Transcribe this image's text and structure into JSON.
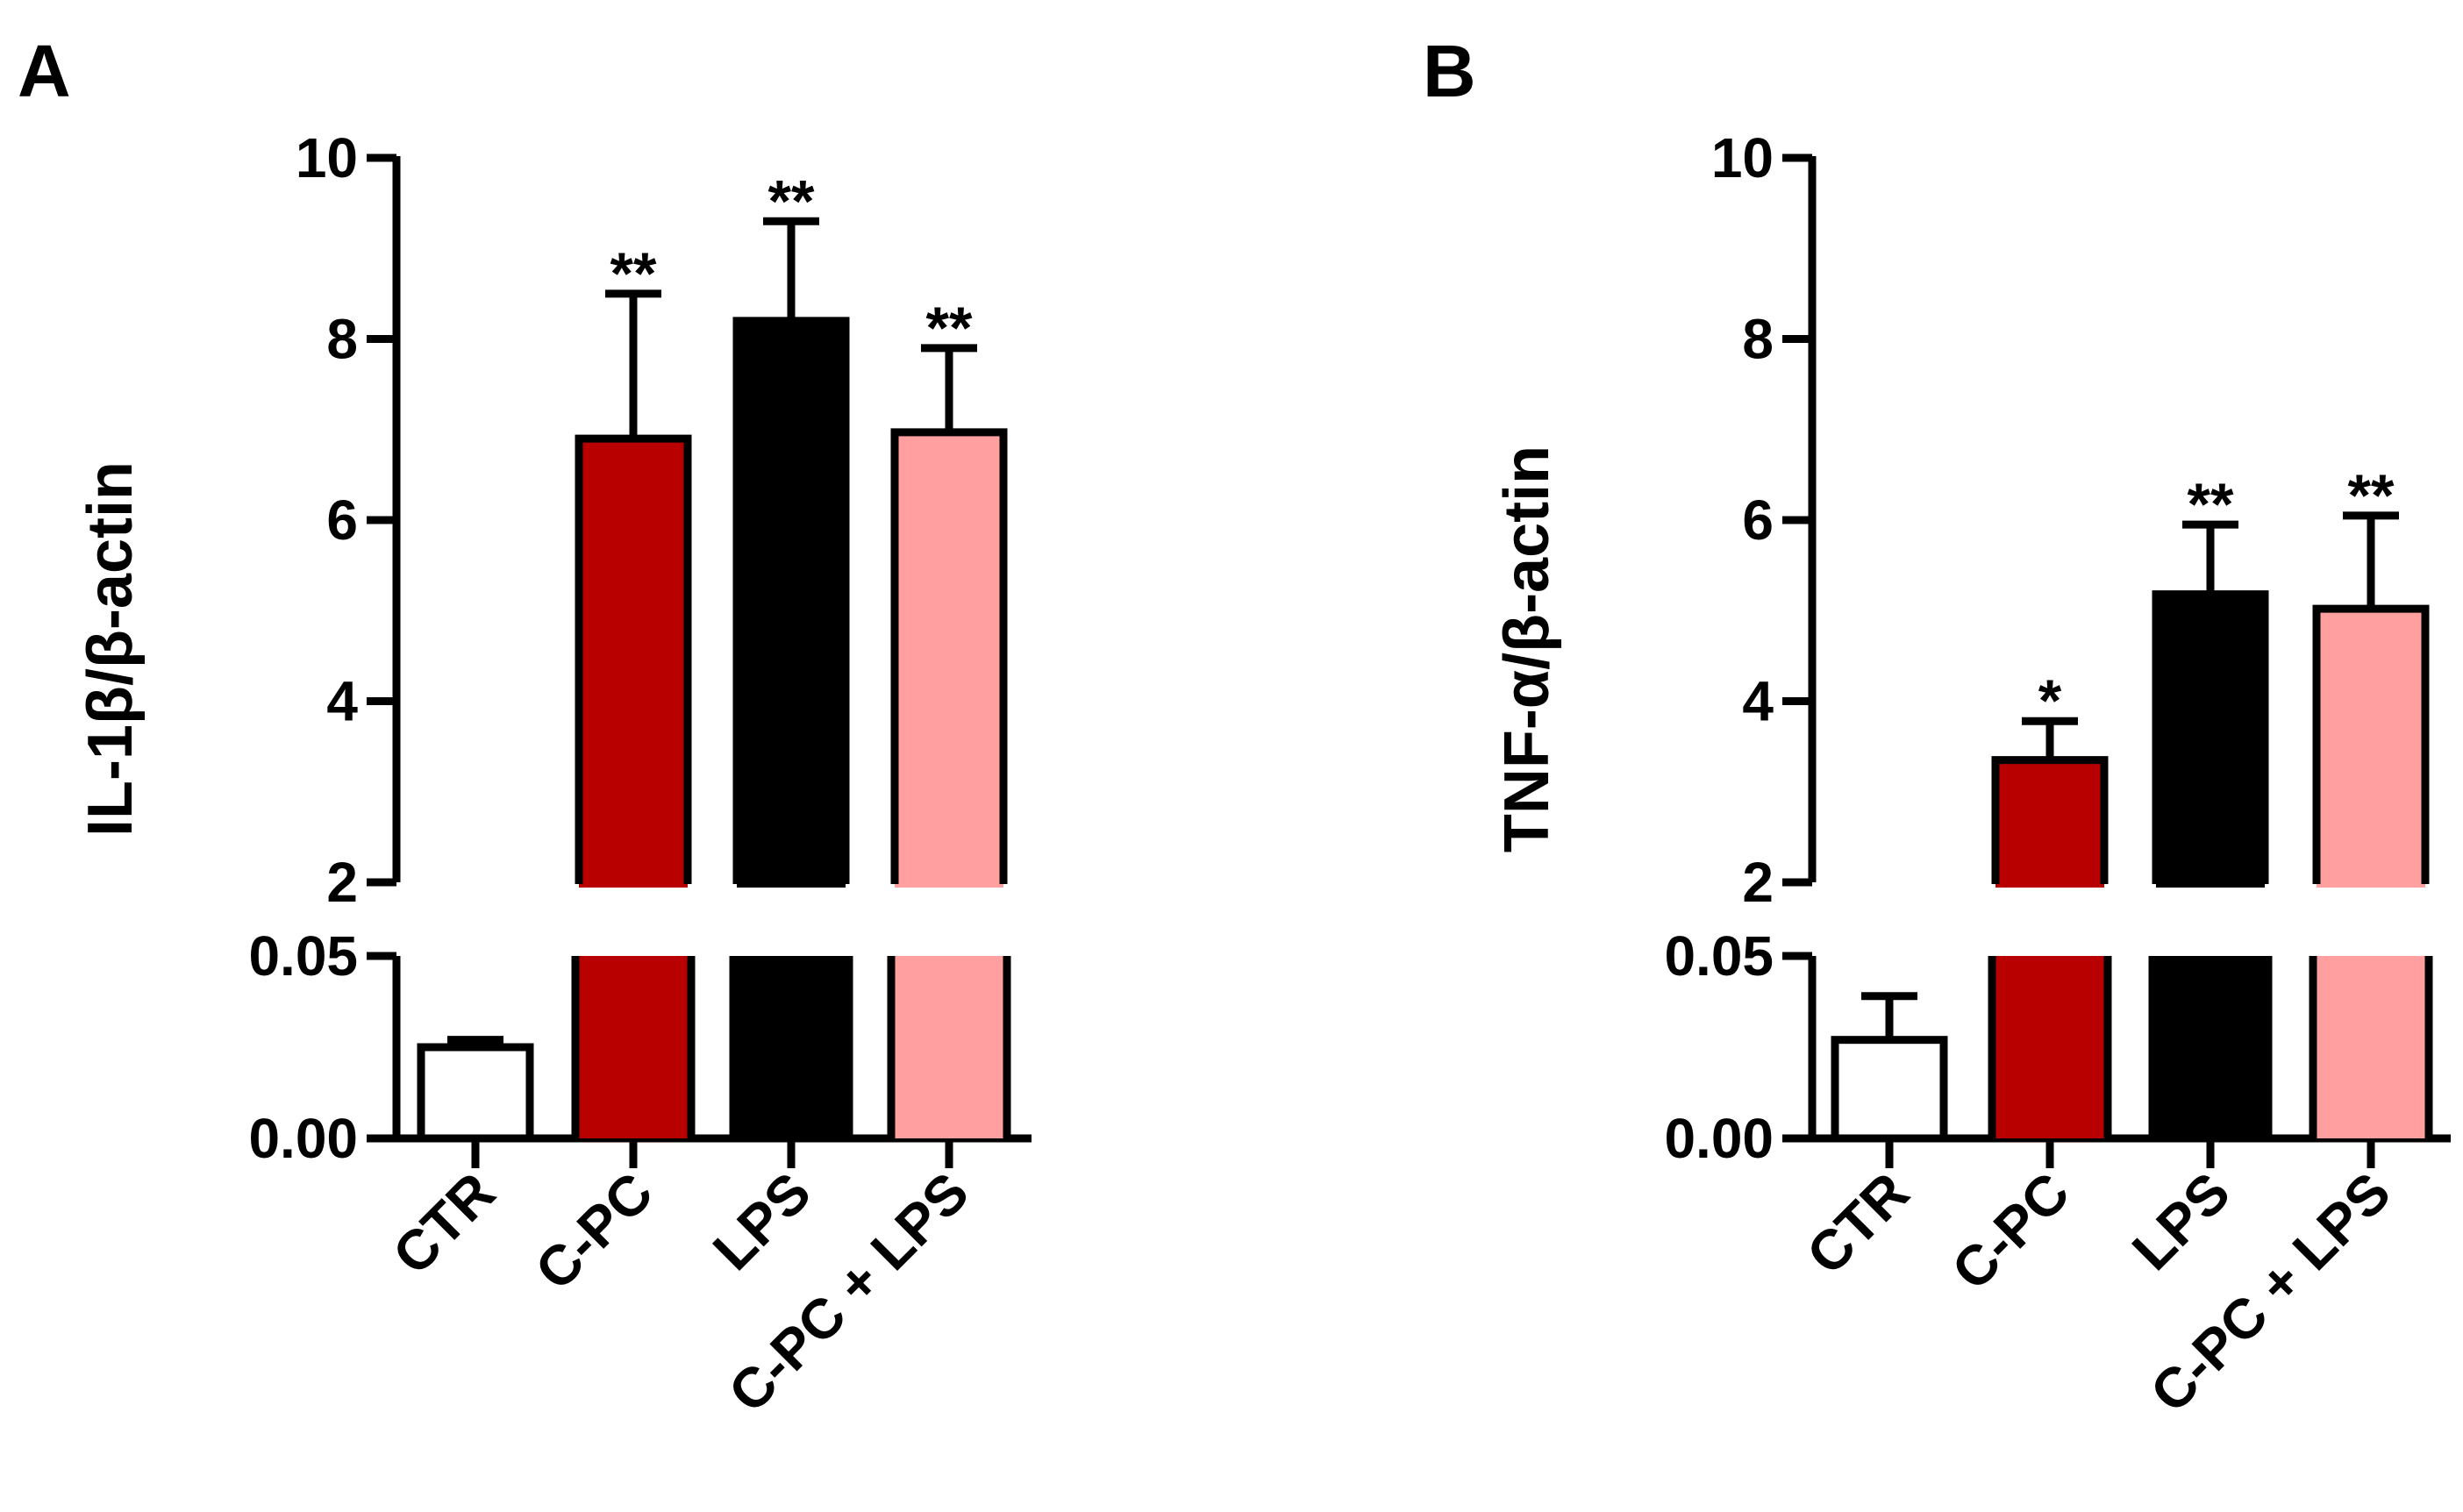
{
  "colors": {
    "CTR": "#ffffff",
    "C-PC": "#b80000",
    "LPS": "#000000",
    "C-PC + LPS": "#ff9f9f",
    "stroke": "#000000"
  },
  "chart_data": [
    {
      "type": "bar",
      "panel": "A",
      "categories": [
        "CTR",
        "C-PC",
        "LPS",
        "C-PC + LPS"
      ],
      "values": [
        0.025,
        6.9,
        8.2,
        6.97
      ],
      "errors": [
        0.002,
        1.6,
        1.1,
        0.93
      ],
      "significance": [
        "",
        "**",
        "**",
        "**"
      ],
      "ylabel": "IL-1β/β-actin",
      "xlabel": "",
      "axis_break": true,
      "lower_segment": {
        "ylim": [
          0,
          0.05
        ],
        "ticks": [
          "0.00",
          "0.05"
        ]
      },
      "upper_segment": {
        "ylim": [
          2,
          10
        ],
        "ticks": [
          "2",
          "4",
          "6",
          "8",
          "10"
        ]
      }
    },
    {
      "type": "bar",
      "panel": "B",
      "categories": [
        "CTR",
        "C-PC",
        "LPS",
        "C-PC + LPS"
      ],
      "values": [
        0.027,
        3.35,
        5.18,
        5.02
      ],
      "errors": [
        0.012,
        0.43,
        0.77,
        1.03
      ],
      "significance": [
        "",
        "*",
        "**",
        "**"
      ],
      "ylabel": "TNF-α/β-actin",
      "xlabel": "",
      "axis_break": true,
      "lower_segment": {
        "ylim": [
          0,
          0.05
        ],
        "ticks": [
          "0.00",
          "0.05"
        ]
      },
      "upper_segment": {
        "ylim": [
          2,
          10
        ],
        "ticks": [
          "2",
          "4",
          "6",
          "8",
          "10"
        ]
      }
    }
  ]
}
